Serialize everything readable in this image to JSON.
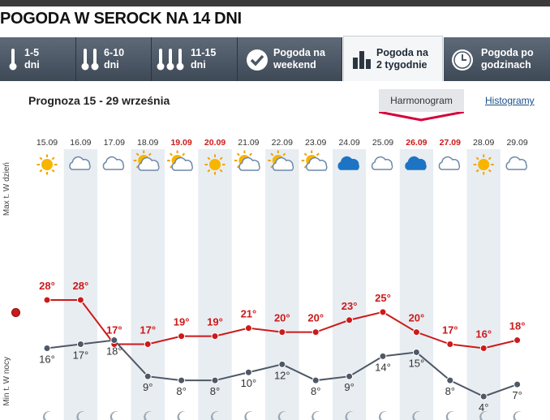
{
  "page_title": "POGODA W SEROCK NA 14 DNI",
  "tabs": [
    {
      "line1": "1-5",
      "line2": "dni",
      "icon": "thermometer-icon"
    },
    {
      "line1": "6-10",
      "line2": "dni",
      "icon": "thermometer-icon"
    },
    {
      "line1": "11-15",
      "line2": "dni",
      "icon": "thermometer-icon"
    },
    {
      "line1": "Pogoda na",
      "line2": "weekend",
      "icon": "checkmark-icon"
    },
    {
      "line1": "Pogoda na",
      "line2": "2 tygodnie",
      "icon": "bar-chart-icon"
    },
    {
      "line1": "Pogoda po",
      "line2": "godzinach",
      "icon": "clock-icon"
    }
  ],
  "active_tab": 4,
  "forecast": {
    "subtitle": "Prognoza 15 - 29 września",
    "active_view": "Harmonogram",
    "other_view": "Histogramy",
    "max_label": "Max t. W dzień",
    "min_label": "Min t. W nocy"
  },
  "colors": {
    "max_line": "#cc1a1a",
    "min_line": "#4e5866",
    "weekend_date": "#cc1a1a",
    "accent": "#d5003c",
    "tab_bg": "#4c5764",
    "column_shade": "#e8edf2"
  },
  "chart_data": {
    "type": "line",
    "x": [
      "15.09",
      "16.09",
      "17.09",
      "18.09",
      "19.09",
      "20.09",
      "21.09",
      "22.09",
      "23.09",
      "24.09",
      "25.09",
      "26.09",
      "27.09",
      "28.09",
      "29.09"
    ],
    "weekend": [
      false,
      false,
      false,
      false,
      true,
      true,
      false,
      false,
      false,
      false,
      false,
      true,
      true,
      false,
      false
    ],
    "icons": [
      "sun",
      "cloud",
      "cloud",
      "partly-cloudy",
      "partly-cloudy",
      "sun",
      "partly-cloudy",
      "partly-cloudy",
      "partly-cloudy",
      "dark-cloud",
      "cloud",
      "dark-cloud",
      "cloud",
      "sun",
      "cloud"
    ],
    "series": [
      {
        "name": "Max t. W dzień",
        "values": [
          28,
          28,
          17,
          17,
          19,
          19,
          21,
          20,
          20,
          23,
          25,
          20,
          17,
          16,
          18
        ],
        "labels": [
          "28°",
          "28°",
          "17°",
          "17°",
          "19°",
          "19°",
          "21°",
          "20°",
          "20°",
          "23°",
          "25°",
          "20°",
          "17°",
          "16°",
          "18°"
        ]
      },
      {
        "name": "Min t. W nocy",
        "values": [
          16,
          17,
          18,
          9,
          8,
          8,
          10,
          12,
          8,
          9,
          14,
          15,
          8,
          4,
          7
        ],
        "labels": [
          "16°",
          "17°",
          "18°",
          "9°",
          "8°",
          "8°",
          "10°",
          "12°",
          "8°",
          "9°",
          "14°",
          "15°",
          "8°",
          "4°",
          "7°"
        ]
      }
    ]
  }
}
